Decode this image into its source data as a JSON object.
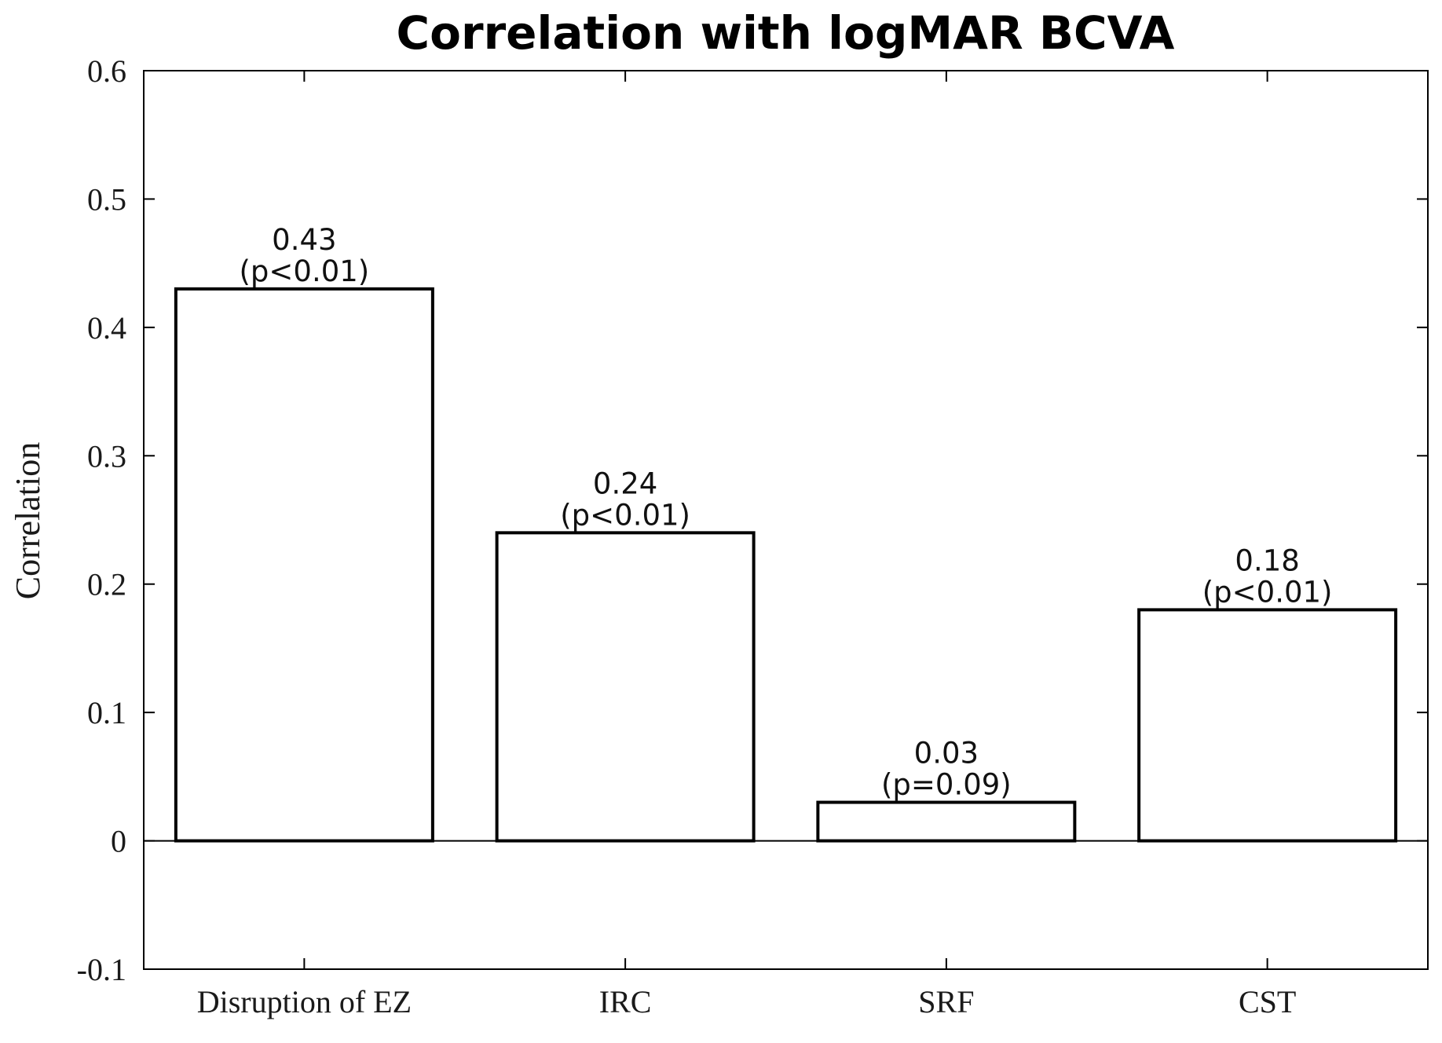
{
  "chart_data": {
    "type": "bar",
    "title": "Correlation with logMAR BCVA",
    "xlabel": "",
    "ylabel": "Correlation",
    "categories": [
      "Disruption of EZ",
      "IRC",
      "SRF",
      "CST"
    ],
    "values": [
      0.43,
      0.24,
      0.03,
      0.18
    ],
    "value_labels": [
      "0.43",
      "0.24",
      "0.03",
      "0.18"
    ],
    "p_labels": [
      "(p<0.01)",
      "(p<0.01)",
      "(p=0.09)",
      "(p<0.01)"
    ],
    "ylim": [
      -0.1,
      0.6
    ],
    "yticks": [
      -0.1,
      0,
      0.1,
      0.2,
      0.3,
      0.4,
      0.5,
      0.6
    ],
    "ytick_labels": [
      "-0.1",
      "0",
      "0.1",
      "0.2",
      "0.3",
      "0.4",
      "0.5",
      "0.6"
    ],
    "grid": false,
    "bar_fill": "#ffffff",
    "bar_edge": "#000000"
  }
}
